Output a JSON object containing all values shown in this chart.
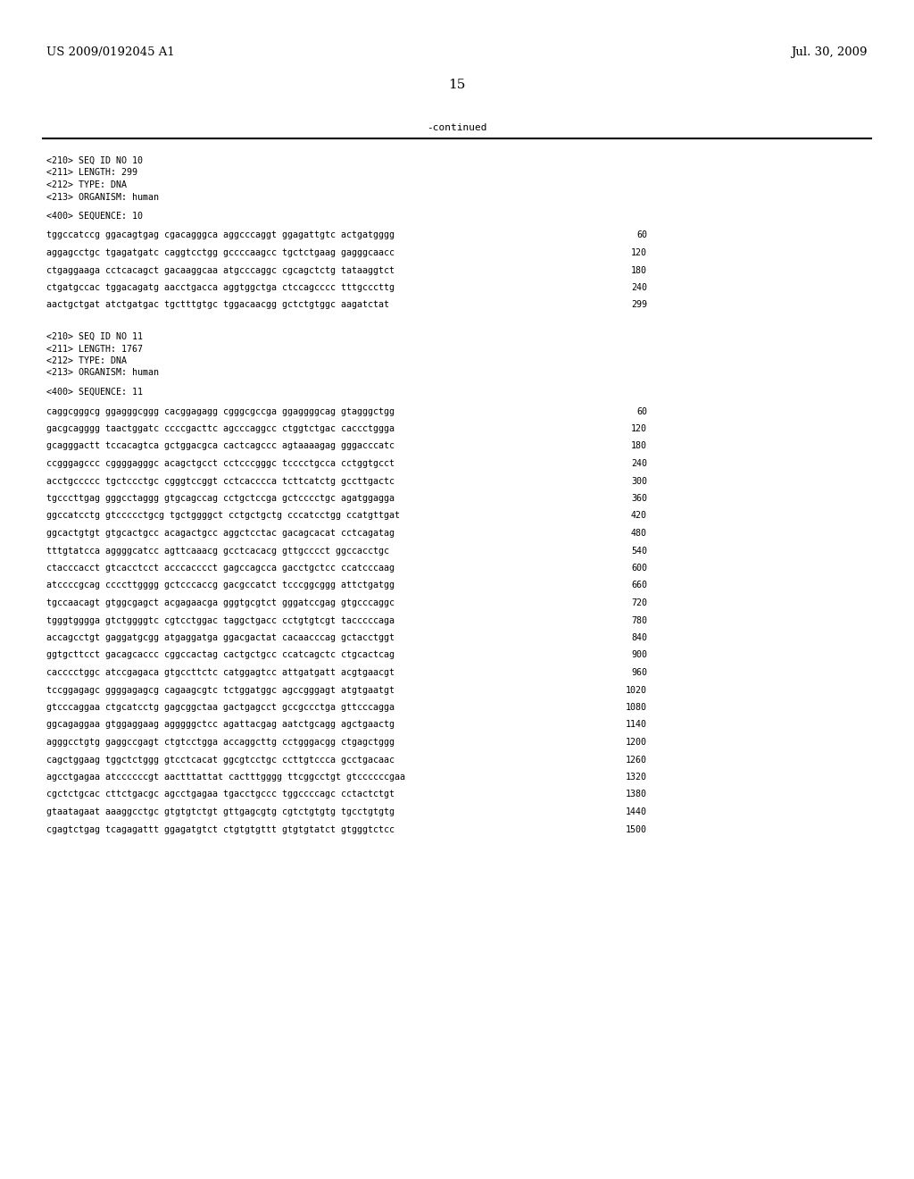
{
  "header_left": "US 2009/0192045 A1",
  "header_right": "Jul. 30, 2009",
  "page_number": "15",
  "continued_text": "-continued",
  "background_color": "#ffffff",
  "text_color": "#000000",
  "seq10_header": [
    "<210> SEQ ID NO 10",
    "<211> LENGTH: 299",
    "<212> TYPE: DNA",
    "<213> ORGANISM: human"
  ],
  "seq10_label": "<400> SEQUENCE: 10",
  "seq10_lines": [
    [
      "tggccatccg ggacagtgag cgacagggca aggcccaggt ggagattgtc actgatgggg",
      "60"
    ],
    [
      "aggagcctgc tgagatgatc caggtcctgg gccccaagcc tgctctgaag gagggcaacc",
      "120"
    ],
    [
      "ctgaggaaga cctcacagct gacaaggcaa atgcccaggc cgcagctctg tataaggtct",
      "180"
    ],
    [
      "ctgatgccac tggacagatg aacctgacca aggtggctga ctccagcccc tttgcccttg",
      "240"
    ],
    [
      "aactgctgat atctgatgac tgctttgtgc tggacaacgg gctctgtggc aagatctat",
      "299"
    ]
  ],
  "seq11_header": [
    "<210> SEQ ID NO 11",
    "<211> LENGTH: 1767",
    "<212> TYPE: DNA",
    "<213> ORGANISM: human"
  ],
  "seq11_label": "<400> SEQUENCE: 11",
  "seq11_lines": [
    [
      "caggcgggcg ggagggcggg cacggagagg cgggcgccga ggaggggcag gtagggctgg",
      "60"
    ],
    [
      "gacgcagggg taactggatc ccccgacttc agcccaggcc ctggtctgac caccctggga",
      "120"
    ],
    [
      "gcagggactt tccacagtca gctggacgca cactcagccc agtaaaagag gggacccatc",
      "180"
    ],
    [
      "ccgggagccc cggggagggc acagctgcct cctcccgggc tcccctgcca cctggtgcct",
      "240"
    ],
    [
      "acctgccccc tgctccctgc cgggtccggt cctcacccca tcttcatctg gccttgactc",
      "300"
    ],
    [
      "tgcccttgag gggcctaggg gtgcagccag cctgctccga gctcccctgc agatggagga",
      "360"
    ],
    [
      "ggccatcctg gtccccctgcg tgctggggct cctgctgctg cccatcctgg ccatgttgat",
      "420"
    ],
    [
      "ggcactgtgt gtgcactgcc acagactgcc aggctcctac gacagcacat cctcagatag",
      "480"
    ],
    [
      "tttgtatcca aggggcatcc agttcaaacg gcctcacacg gttgcccct ggccacctgc",
      "540"
    ],
    [
      "ctacccacct gtcacctcct acccacccct gagccagcca gacctgctcc ccatcccaag",
      "600"
    ],
    [
      "atccccgcag ccccttgggg gctcccaccg gacgccatct tcccggcggg attctgatgg",
      "660"
    ],
    [
      "tgccaacagt gtggcgagct acgagaacga gggtgcgtct gggatccgag gtgcccaggc",
      "720"
    ],
    [
      "tgggtgggga gtctggggtc cgtcctggac taggctgacc cctgtgtcgt tacccccaga",
      "780"
    ],
    [
      "accagcctgt gaggatgcgg atgaggatga ggacgactat cacaacccag gctacctggt",
      "840"
    ],
    [
      "ggtgcttcct gacagcaccc cggccactag cactgctgcc ccatcagctc ctgcactcag",
      "900"
    ],
    [
      "cacccctggc atccgagaca gtgccttctc catggagtcc attgatgatt acgtgaacgt",
      "960"
    ],
    [
      "tccggagagc ggggagagcg cagaagcgtc tctggatggc agccgggagt atgtgaatgt",
      "1020"
    ],
    [
      "gtcccaggaa ctgcatcctg gagcggctaa gactgagcct gccgccctga gttcccagga",
      "1080"
    ],
    [
      "ggcagaggaa gtggaggaag agggggctcc agattacgag aatctgcagg agctgaactg",
      "1140"
    ],
    [
      "agggcctgtg gaggccgagt ctgtcctgga accaggcttg cctgggacgg ctgagctggg",
      "1200"
    ],
    [
      "cagctggaag tggctctggg gtcctcacat ggcgtcctgc ccttgtccca gcctgacaac",
      "1260"
    ],
    [
      "agcctgagaa atccccccgt aactttattat cactttgggg ttcggcctgt gtccccccgaa",
      "1320"
    ],
    [
      "cgctctgcac cttctgacgc agcctgagaa tgacctgccc tggccccagc cctactctgt",
      "1380"
    ],
    [
      "gtaatagaat aaaggcctgc gtgtgtctgt gttgagcgtg cgtctgtgtg tgcctgtgtg",
      "1440"
    ],
    [
      "cgagtctgag tcagagattt ggagatgtct ctgtgtgttt gtgtgtatct gtgggtctcc",
      "1500"
    ]
  ]
}
